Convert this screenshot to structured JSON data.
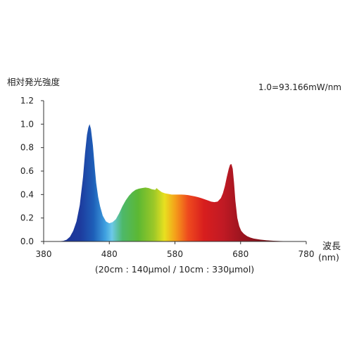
{
  "chart_data": {
    "type": "area",
    "ylabel": "相対発光強度",
    "annotation": "1.0=93.166mW/nm",
    "xlabel": "波長",
    "xunit": "(nm)",
    "footnote": "(20cm : 140μmol / 10cm : 330μmol)",
    "xlim": [
      380,
      780
    ],
    "ylim": [
      0,
      1.2
    ],
    "xticks": [
      "380",
      "480",
      "580",
      "680",
      "780"
    ],
    "yticks": [
      "0.0",
      "0.2",
      "0.4",
      "0.6",
      "0.8",
      "1.0",
      "1.2"
    ],
    "x": [
      380,
      400,
      410,
      415,
      420,
      425,
      430,
      435,
      440,
      443,
      446,
      448,
      450,
      452,
      455,
      458,
      460,
      463,
      466,
      470,
      475,
      480,
      485,
      490,
      495,
      500,
      505,
      510,
      515,
      520,
      525,
      530,
      535,
      540,
      545,
      550,
      552,
      555,
      560,
      565,
      570,
      575,
      580,
      585,
      590,
      595,
      600,
      605,
      610,
      615,
      620,
      625,
      630,
      635,
      640,
      645,
      650,
      653,
      656,
      659,
      662,
      664,
      666,
      668,
      670,
      672,
      675,
      678,
      681,
      685,
      690,
      695,
      700,
      710,
      720,
      730,
      740,
      750,
      760,
      770,
      780
    ],
    "y": [
      0.0,
      0.0,
      0.005,
      0.015,
      0.04,
      0.09,
      0.17,
      0.31,
      0.55,
      0.75,
      0.91,
      0.97,
      1.0,
      0.96,
      0.82,
      0.62,
      0.5,
      0.38,
      0.3,
      0.22,
      0.17,
      0.155,
      0.165,
      0.19,
      0.24,
      0.3,
      0.35,
      0.39,
      0.42,
      0.44,
      0.45,
      0.455,
      0.46,
      0.455,
      0.445,
      0.44,
      0.455,
      0.44,
      0.42,
      0.41,
      0.405,
      0.4,
      0.4,
      0.4,
      0.4,
      0.398,
      0.395,
      0.39,
      0.385,
      0.378,
      0.37,
      0.36,
      0.35,
      0.34,
      0.335,
      0.34,
      0.37,
      0.41,
      0.47,
      0.55,
      0.62,
      0.655,
      0.66,
      0.62,
      0.5,
      0.35,
      0.2,
      0.13,
      0.09,
      0.065,
      0.045,
      0.033,
      0.025,
      0.016,
      0.01,
      0.006,
      0.004,
      0.002,
      0.001,
      0.0,
      0.0
    ],
    "grid": false,
    "legend": "none"
  }
}
